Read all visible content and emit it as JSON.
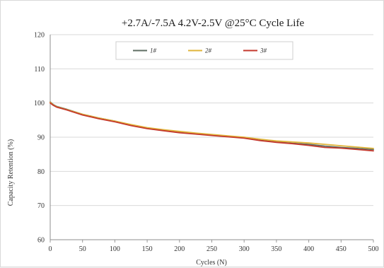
{
  "chart_data": {
    "type": "line",
    "title": "+2.7A/-7.5A 4.2V-2.5V @25°C Cycle Life",
    "xlabel": "Cycles (N)",
    "ylabel": "Capacity Retention (%)",
    "xlim": [
      0,
      500
    ],
    "ylim": [
      60,
      120
    ],
    "x_ticks": [
      "0",
      "50",
      "100",
      "150",
      "200",
      "250",
      "300",
      "350",
      "400",
      "450",
      "500"
    ],
    "y_ticks": [
      "60",
      "70",
      "80",
      "90",
      "100",
      "110",
      "120"
    ],
    "grid": "horizontal",
    "legend_position": "top-center",
    "x": [
      0,
      5,
      10,
      25,
      50,
      75,
      100,
      125,
      150,
      175,
      200,
      225,
      250,
      275,
      300,
      325,
      350,
      375,
      400,
      425,
      450,
      475,
      500
    ],
    "series": [
      {
        "name": "1#",
        "color": "#5f6d63",
        "values": [
          100.3,
          99.5,
          99.0,
          98.2,
          96.7,
          95.6,
          94.7,
          93.6,
          92.7,
          92.0,
          91.5,
          91.0,
          90.6,
          90.2,
          89.8,
          89.1,
          88.6,
          88.2,
          87.9,
          87.4,
          87.0,
          86.7,
          86.4
        ]
      },
      {
        "name": "2#",
        "color": "#e0b53a",
        "values": [
          100.2,
          99.4,
          98.9,
          98.1,
          96.7,
          95.6,
          94.7,
          93.7,
          92.8,
          92.2,
          91.7,
          91.2,
          90.8,
          90.4,
          90.0,
          89.4,
          88.9,
          88.6,
          88.3,
          87.9,
          87.5,
          87.1,
          86.7
        ]
      },
      {
        "name": "3#",
        "color": "#c4382c",
        "values": [
          100.0,
          99.3,
          98.8,
          98.0,
          96.5,
          95.4,
          94.5,
          93.4,
          92.5,
          91.9,
          91.3,
          90.9,
          90.5,
          90.1,
          89.7,
          89.0,
          88.5,
          88.1,
          87.6,
          87.0,
          86.8,
          86.4,
          86.0
        ]
      }
    ]
  }
}
